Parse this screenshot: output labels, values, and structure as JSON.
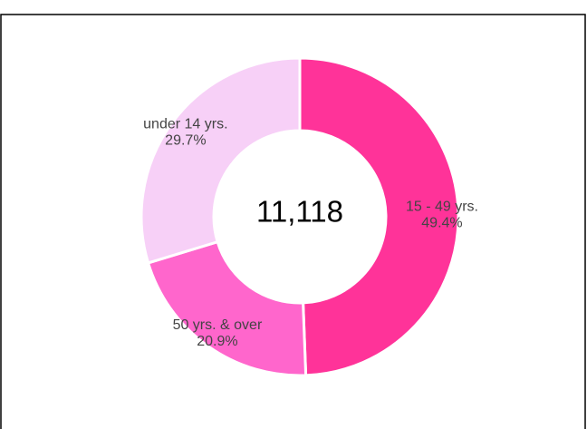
{
  "chart_data": {
    "type": "pie",
    "categories": [
      "15 - 49 yrs.",
      "50 yrs. & over",
      "under 14 yrs."
    ],
    "values": [
      49.4,
      20.9,
      29.7
    ],
    "value_labels": [
      "49.4%",
      "20.9%",
      "29.7%"
    ],
    "colors": [
      "#ff3399",
      "#ff66cc",
      "#f7d0f7"
    ],
    "center_label": "11,118"
  }
}
